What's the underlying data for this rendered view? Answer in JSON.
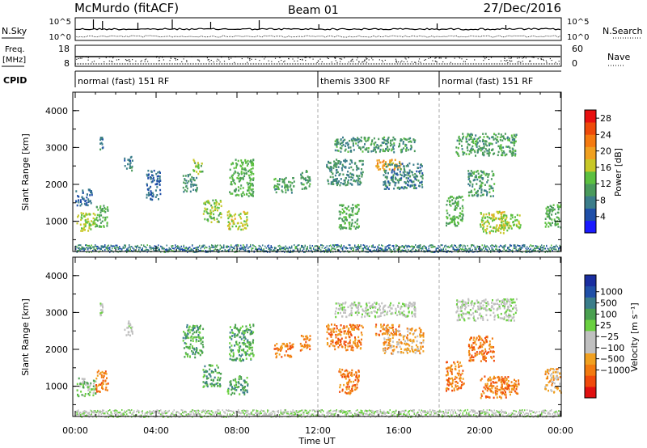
{
  "header": {
    "station": "McMurdo (fitACF)",
    "beam": "Beam 01",
    "date": "27/Dec/2016"
  },
  "noise_panel": {
    "left_label": "N.Sky",
    "right_label": "N.Search",
    "left_ticks": [
      "10^5",
      "10^0"
    ],
    "right_ticks": [
      "10^5",
      "10^0"
    ]
  },
  "freq_panel": {
    "label_line1": "Freq.",
    "label_line2": "[MHz]",
    "right_label": "Nave",
    "left_ticks": [
      "18",
      "8"
    ],
    "right_ticks": [
      "60",
      "0"
    ]
  },
  "cpid_panel": {
    "label": "CPID",
    "segments": [
      {
        "start_hour": 0,
        "end_hour": 12,
        "label": "normal (fast) 151 RF"
      },
      {
        "start_hour": 12,
        "end_hour": 18,
        "label": "themis 3300 RF"
      },
      {
        "start_hour": 18,
        "end_hour": 24,
        "label": "normal (fast) 151 RF"
      }
    ]
  },
  "axes": {
    "x_ticks": [
      "00:00",
      "04:00",
      "08:00",
      "12:00",
      "16:00",
      "20:00",
      "00:00"
    ],
    "x_label": "Time UT",
    "y_label": "Slant Range [km]",
    "y_ticks": [
      "1000",
      "2000",
      "3000",
      "4000"
    ]
  },
  "chart_data": [
    {
      "type": "heatmap",
      "parameter": "power",
      "x_unit": "hours UT",
      "xlim": [
        0,
        24
      ],
      "ylim": [
        180,
        4500
      ],
      "colorbar": {
        "label": "Power [dB]",
        "ticks": [
          "4",
          "8",
          "12",
          "16",
          "20",
          "24",
          "28"
        ],
        "range": [
          0,
          30
        ],
        "colors": [
          "#1a1aff",
          "#1f4fa8",
          "#3b7d8a",
          "#4a9a5c",
          "#5cc040",
          "#c8c828",
          "#f0a020",
          "#f57a10",
          "#ee4a0a",
          "#e81010"
        ]
      },
      "scatter_regions": [
        {
          "t": [
            0.05,
            1.0
          ],
          "r": [
            750,
            1250
          ],
          "level": 15
        },
        {
          "t": [
            1.0,
            1.6
          ],
          "r": [
            850,
            1450
          ],
          "level": 12
        },
        {
          "t": [
            1.2,
            1.35
          ],
          "r": [
            2950,
            3300
          ],
          "level": 8
        },
        {
          "t": [
            0.0,
            0.8
          ],
          "r": [
            1450,
            1900
          ],
          "level": 6
        },
        {
          "t": [
            2.4,
            2.8
          ],
          "r": [
            2400,
            2800
          ],
          "level": 8
        },
        {
          "t": [
            3.5,
            4.2
          ],
          "r": [
            1600,
            2400
          ],
          "level": 6
        },
        {
          "t": [
            5.3,
            6.0
          ],
          "r": [
            1800,
            2300
          ],
          "level": 9
        },
        {
          "t": [
            5.8,
            6.3
          ],
          "r": [
            2300,
            2700
          ],
          "level": 14
        },
        {
          "t": [
            6.3,
            7.2
          ],
          "r": [
            1000,
            1600
          ],
          "level": 14
        },
        {
          "t": [
            7.5,
            8.5
          ],
          "r": [
            800,
            1300
          ],
          "level": 16
        },
        {
          "t": [
            7.6,
            8.8
          ],
          "r": [
            1700,
            2700
          ],
          "level": 12
        },
        {
          "t": [
            9.8,
            10.8
          ],
          "r": [
            1800,
            2200
          ],
          "level": 11
        },
        {
          "t": [
            11.1,
            11.6
          ],
          "r": [
            1900,
            2400
          ],
          "level": 10
        },
        {
          "t": [
            12.4,
            14.2
          ],
          "r": [
            2000,
            2700
          ],
          "level": 9
        },
        {
          "t": [
            13.0,
            14.0
          ],
          "r": [
            800,
            1500
          ],
          "level": 12
        },
        {
          "t": [
            12.8,
            16.8
          ],
          "r": [
            2900,
            3300
          ],
          "level": 10
        },
        {
          "t": [
            14.8,
            16.1
          ],
          "r": [
            2400,
            2700
          ],
          "level": 20
        },
        {
          "t": [
            15.2,
            17.2
          ],
          "r": [
            1900,
            2600
          ],
          "level": 8
        },
        {
          "t": [
            18.3,
            19.2
          ],
          "r": [
            900,
            1700
          ],
          "level": 12
        },
        {
          "t": [
            18.8,
            21.8
          ],
          "r": [
            2800,
            3400
          ],
          "level": 11
        },
        {
          "t": [
            19.4,
            20.7
          ],
          "r": [
            1700,
            2400
          ],
          "level": 10
        },
        {
          "t": [
            20.0,
            21.4
          ],
          "r": [
            700,
            1300
          ],
          "level": 16
        },
        {
          "t": [
            21.0,
            22.0
          ],
          "r": [
            800,
            1200
          ],
          "level": 15
        },
        {
          "t": [
            23.2,
            24.0
          ],
          "r": [
            850,
            1500
          ],
          "level": 12
        }
      ],
      "ground_scatter_band": {
        "t": [
          0,
          24
        ],
        "r": [
          180,
          380
        ],
        "level": 8
      }
    },
    {
      "type": "heatmap",
      "parameter": "velocity",
      "x_unit": "hours UT",
      "xlim": [
        0,
        24
      ],
      "ylim": [
        180,
        4500
      ],
      "colorbar": {
        "label": "Velocity [m s⁻¹]",
        "ticks": [
          "1000",
          "500",
          "100",
          "25",
          "−25",
          "−100",
          "−500",
          "−1000"
        ],
        "range": [
          -1200,
          1200
        ],
        "colors": [
          "#e01010",
          "#f04a0c",
          "#f27a10",
          "#f0a020",
          "#c0c0c0",
          "#c0c0c0",
          "#6ad040",
          "#4aa050",
          "#3a7d8a",
          "#2050a8",
          "#1a2ea0"
        ]
      },
      "scatter_regions": [
        {
          "t": [
            0.05,
            1.0
          ],
          "r": [
            750,
            1250
          ],
          "level": 1
        },
        {
          "t": [
            1.0,
            1.6
          ],
          "r": [
            850,
            1450
          ],
          "level": -3
        },
        {
          "t": [
            1.2,
            1.35
          ],
          "r": [
            2950,
            3300
          ],
          "level": 0
        },
        {
          "t": [
            2.4,
            2.8
          ],
          "r": [
            2400,
            2800
          ],
          "level": 0
        },
        {
          "t": [
            5.3,
            6.3
          ],
          "r": [
            1800,
            2700
          ],
          "level": 2
        },
        {
          "t": [
            6.3,
            7.2
          ],
          "r": [
            1000,
            1600
          ],
          "level": 2
        },
        {
          "t": [
            7.5,
            8.5
          ],
          "r": [
            800,
            1300
          ],
          "level": 2
        },
        {
          "t": [
            7.6,
            8.8
          ],
          "r": [
            1700,
            2700
          ],
          "level": 2
        },
        {
          "t": [
            9.8,
            10.8
          ],
          "r": [
            1800,
            2200
          ],
          "level": -3
        },
        {
          "t": [
            11.1,
            11.6
          ],
          "r": [
            1900,
            2400
          ],
          "level": -3
        },
        {
          "t": [
            12.4,
            14.2
          ],
          "r": [
            2000,
            2700
          ],
          "level": -3
        },
        {
          "t": [
            13.0,
            14.0
          ],
          "r": [
            800,
            1500
          ],
          "level": -3
        },
        {
          "t": [
            12.8,
            16.8
          ],
          "r": [
            2900,
            3300
          ],
          "level": 0
        },
        {
          "t": [
            14.8,
            16.1
          ],
          "r": [
            2400,
            2700
          ],
          "level": -3
        },
        {
          "t": [
            15.2,
            17.2
          ],
          "r": [
            1900,
            2600
          ],
          "level": -2
        },
        {
          "t": [
            18.3,
            19.2
          ],
          "r": [
            900,
            1700
          ],
          "level": -3
        },
        {
          "t": [
            18.8,
            21.8
          ],
          "r": [
            2800,
            3400
          ],
          "level": 0
        },
        {
          "t": [
            19.4,
            20.7
          ],
          "r": [
            1700,
            2400
          ],
          "level": -3
        },
        {
          "t": [
            20.0,
            21.4
          ],
          "r": [
            700,
            1300
          ],
          "level": -3
        },
        {
          "t": [
            21.0,
            22.0
          ],
          "r": [
            800,
            1200
          ],
          "level": -3
        },
        {
          "t": [
            23.2,
            24.0
          ],
          "r": [
            850,
            1500
          ],
          "level": -2
        }
      ],
      "ground_scatter_band": {
        "t": [
          0,
          24
        ],
        "r": [
          180,
          380
        ],
        "level": 0
      }
    }
  ]
}
